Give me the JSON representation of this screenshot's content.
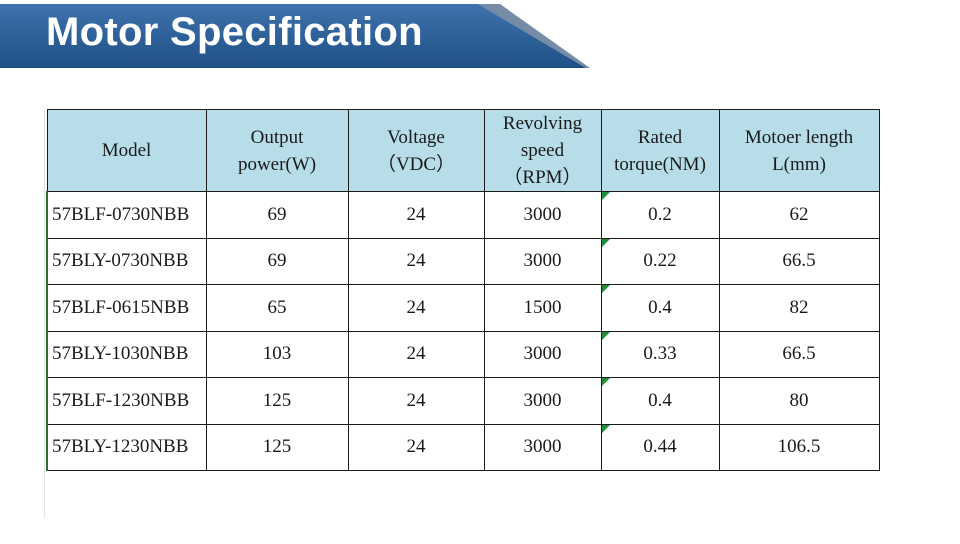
{
  "header": {
    "title": "Motor Specification"
  },
  "colors": {
    "banner_dark": "#1f4f86",
    "banner_light": "#3f73ad",
    "header_fill": "#b7dde8",
    "corner_marker": "#1f8f3a"
  },
  "table": {
    "columns": [
      {
        "lines": [
          "Model"
        ]
      },
      {
        "lines": [
          "Output",
          "power(W)"
        ]
      },
      {
        "lines": [
          "Voltage",
          "（VDC）"
        ]
      },
      {
        "lines": [
          "Revolving",
          "speed",
          "（RPM）"
        ]
      },
      {
        "lines": [
          "Rated",
          "torque(NM)"
        ]
      },
      {
        "lines": [
          "Motoer length",
          "L(mm)"
        ]
      }
    ],
    "rows": [
      [
        "57BLF-0730NBB",
        "69",
        "24",
        "3000",
        "0.2",
        "62"
      ],
      [
        "57BLY-0730NBB",
        "69",
        "24",
        "3000",
        "0.22",
        "66.5"
      ],
      [
        "57BLF-0615NBB",
        "65",
        "24",
        "1500",
        "0.4",
        "82"
      ],
      [
        "57BLY-1030NBB",
        "103",
        "24",
        "3000",
        "0.33",
        "66.5"
      ],
      [
        "57BLF-1230NBB",
        "125",
        "24",
        "3000",
        "0.4",
        "80"
      ],
      [
        "57BLY-1230NBB",
        "125",
        "24",
        "3000",
        "0.44",
        "106.5"
      ]
    ]
  }
}
